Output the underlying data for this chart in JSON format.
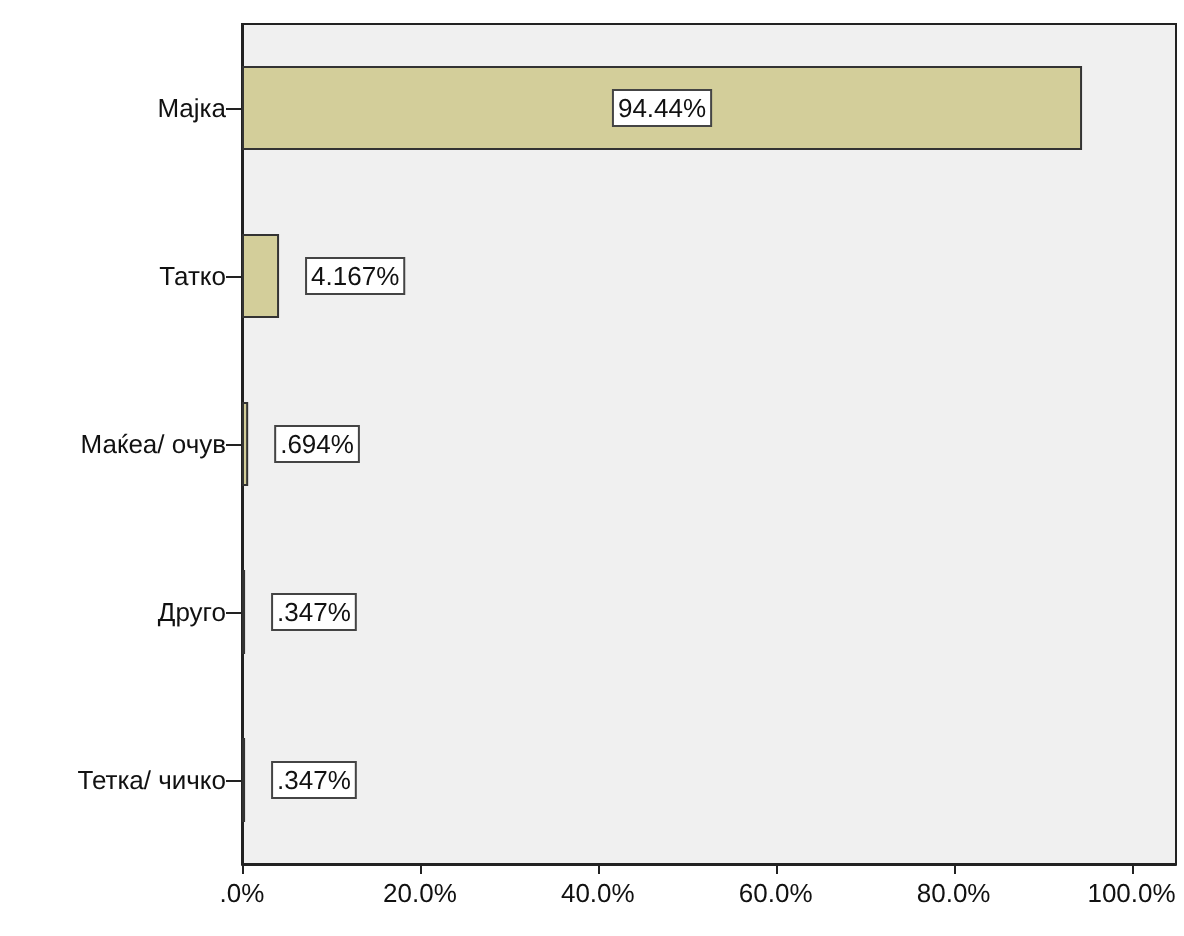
{
  "chart_data": {
    "type": "bar",
    "orientation": "horizontal",
    "categories": [
      "Мајка",
      "Татко",
      "Маќеа/ очув",
      "Друго",
      "Тетка/ чичко"
    ],
    "values": [
      94.44,
      4.167,
      0.694,
      0.347,
      0.347
    ],
    "value_labels": [
      "94.44%",
      "4.167%",
      ".694%",
      ".347%",
      ".347%"
    ],
    "color": "#d3ce9a",
    "xlim": [
      0,
      105
    ],
    "xticks": [
      {
        "value": 0,
        "label": ".0%"
      },
      {
        "value": 20,
        "label": "20.0%"
      },
      {
        "value": 40,
        "label": "40.0%"
      },
      {
        "value": 60,
        "label": "60.0%"
      },
      {
        "value": 80,
        "label": "80.0%"
      },
      {
        "value": 100,
        "label": "100.0%"
      }
    ],
    "grid": false
  }
}
